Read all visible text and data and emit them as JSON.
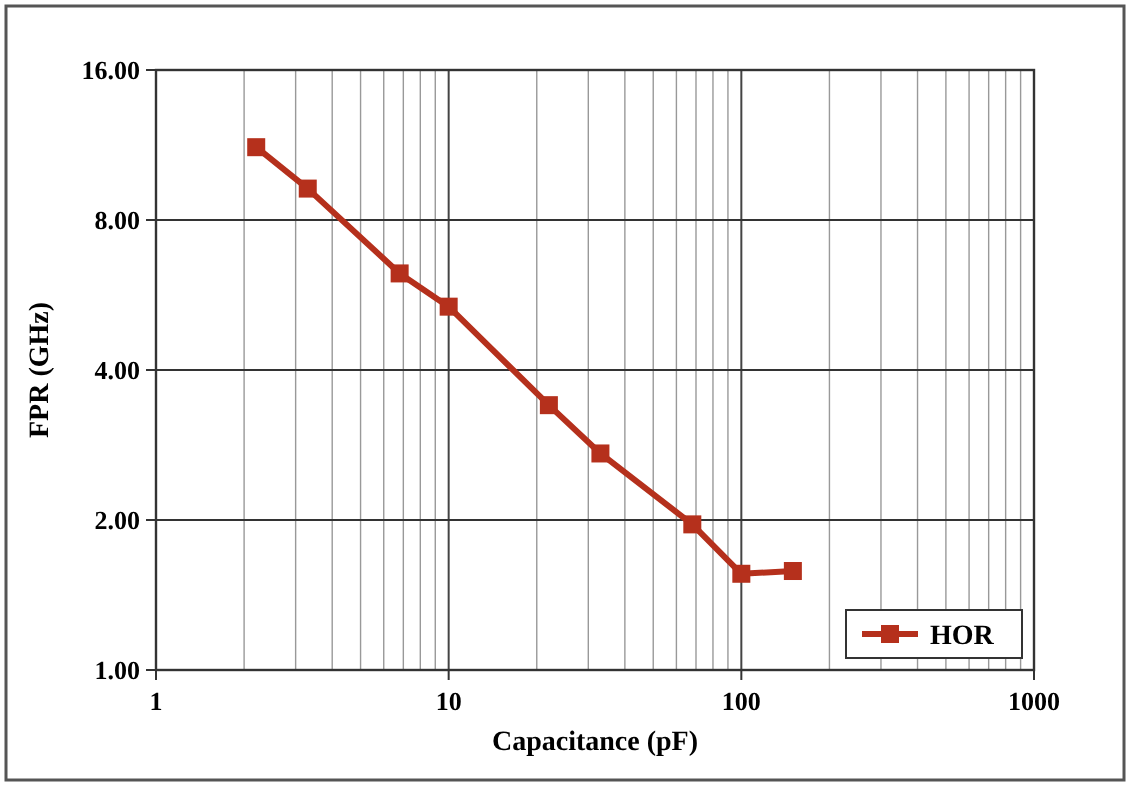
{
  "chart_data": {
    "type": "line",
    "xlabel": "Capacitance (pF)",
    "ylabel": "FPR (GHz)",
    "log": "xy",
    "grid": true,
    "legend": "bottom right",
    "marker": "square",
    "line_style": "solid",
    "x": [
      2.2,
      3.3,
      6.8,
      10,
      22,
      33,
      68,
      100,
      150
    ],
    "xlim": [
      1,
      1000
    ],
    "xticks": [
      1,
      10,
      100,
      1000
    ],
    "ylim": [
      1,
      16
    ],
    "yticks": [
      {
        "value": 1,
        "label": "1.00"
      },
      {
        "value": 2,
        "label": "2.00"
      },
      {
        "value": 4,
        "label": "4.00"
      },
      {
        "value": 8,
        "label": "8.00"
      },
      {
        "value": 16,
        "label": "16.00"
      }
    ],
    "series": [
      {
        "name": "HOR",
        "color": "#b5301c",
        "values": [
          11.2,
          9.25,
          6.25,
          5.36,
          3.4,
          2.72,
          1.96,
          1.56,
          1.58
        ]
      }
    ]
  }
}
